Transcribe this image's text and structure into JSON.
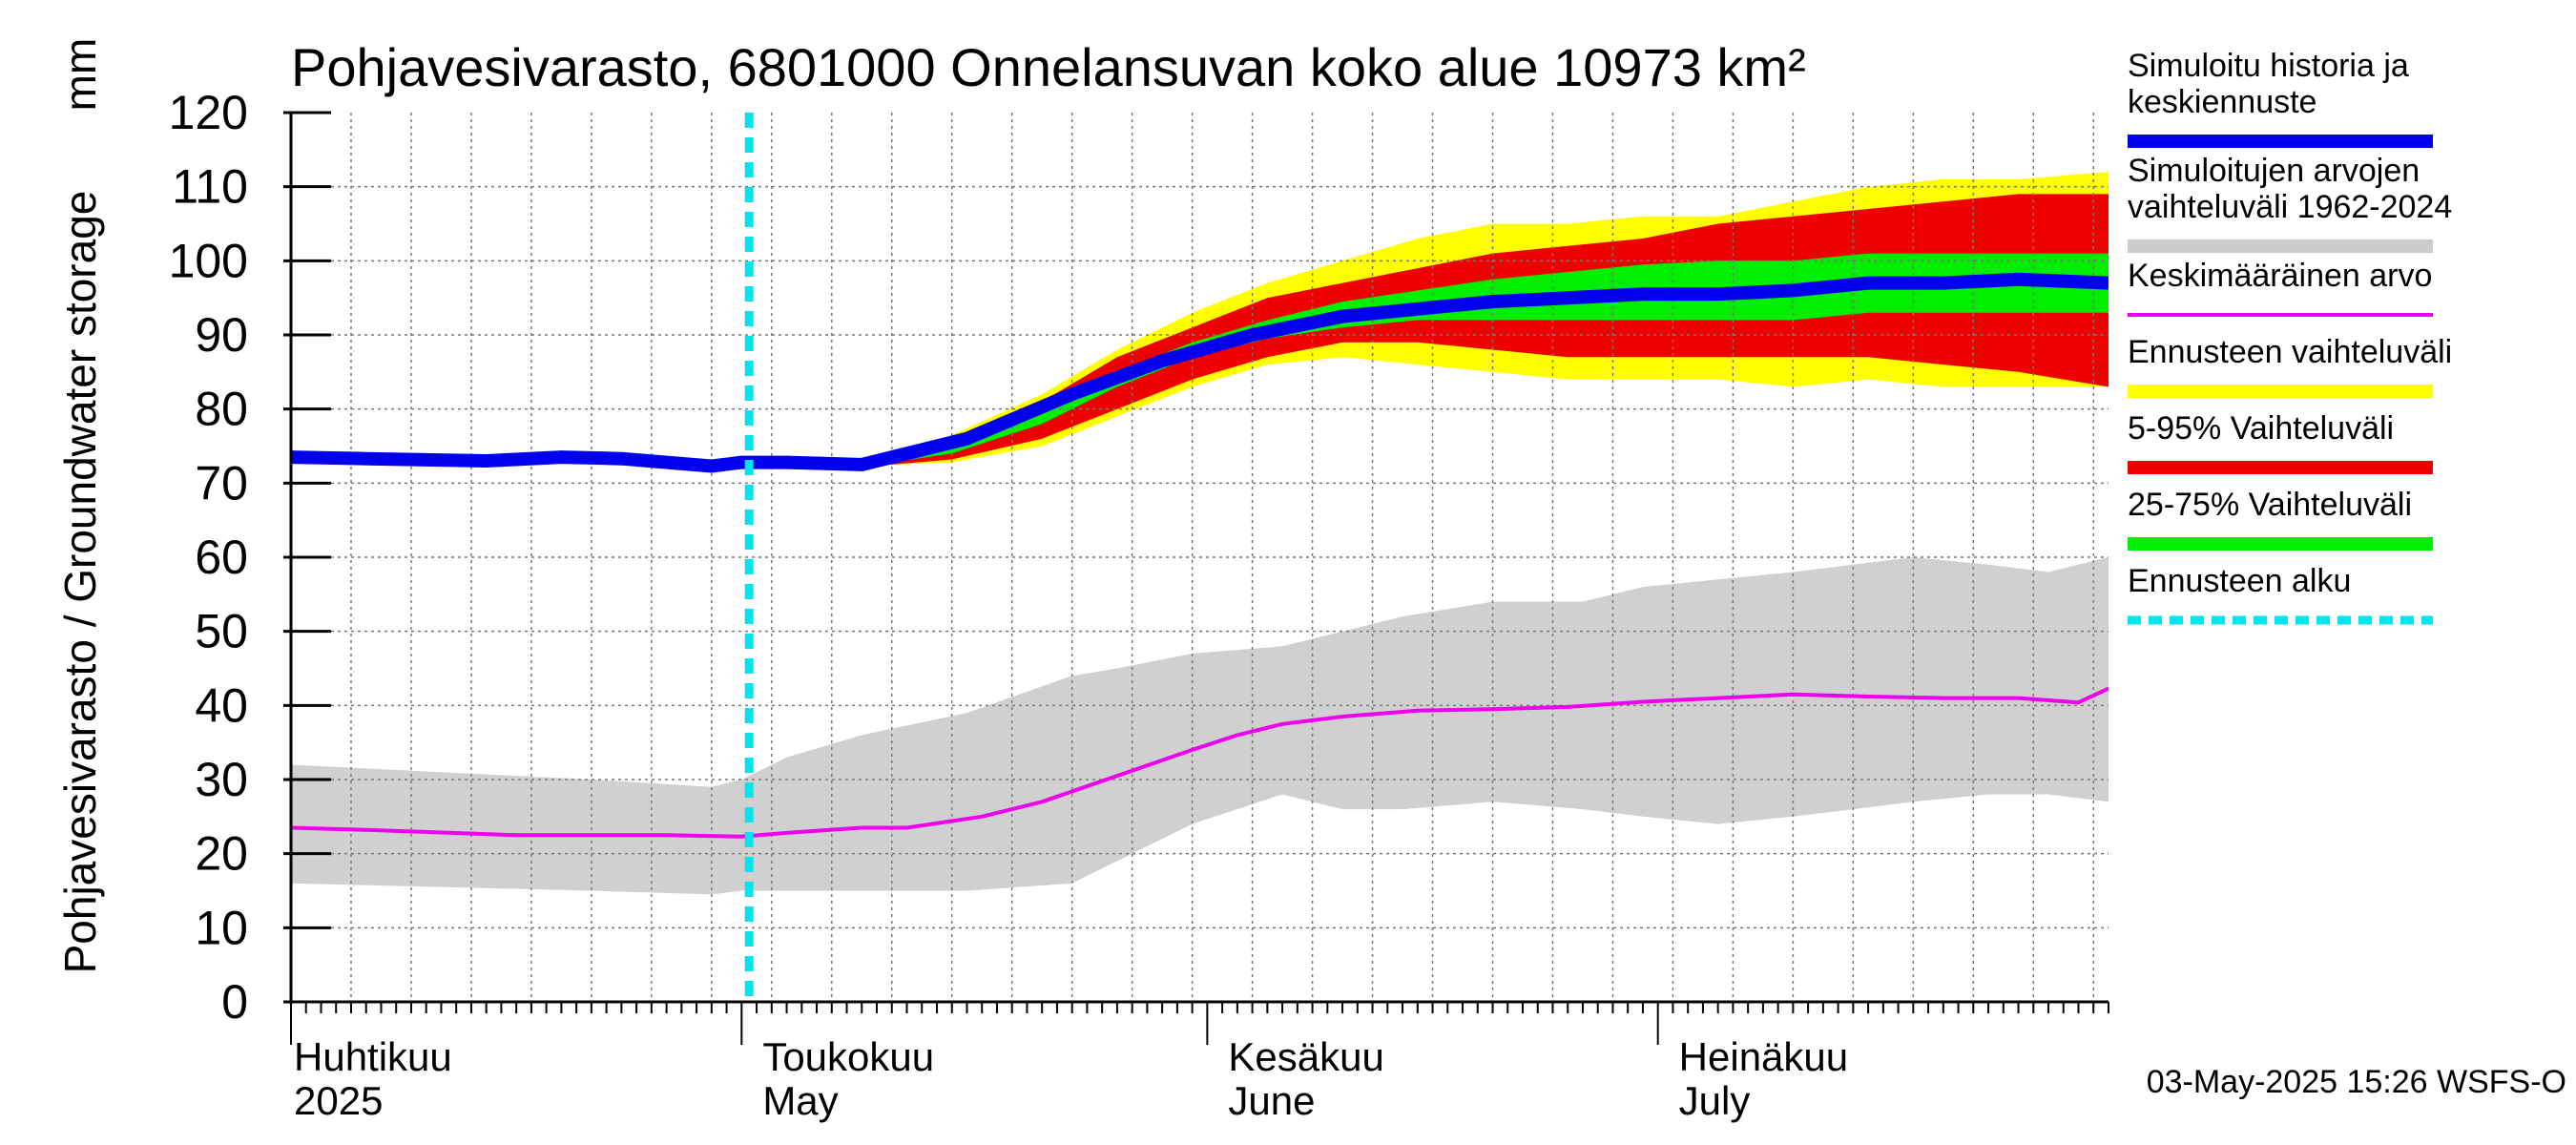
{
  "chart_data": {
    "type": "area",
    "title": "Pohjavesivarasto, 6801000 Onnelansuvan koko alue 10973 km²",
    "ylabel": "Pohjavesivarasto / Groundwater storage",
    "yunit": "mm",
    "ylim": [
      0,
      120
    ],
    "yticks": [
      0,
      10,
      20,
      30,
      40,
      50,
      60,
      70,
      80,
      90,
      100,
      110,
      120
    ],
    "xlim_days": [
      0,
      121
    ],
    "grid": true,
    "months": [
      {
        "fi": "Huhtikuu",
        "en": "2025",
        "day": 0
      },
      {
        "fi": "Toukokuu",
        "en": "May",
        "day": 30
      },
      {
        "fi": "Kesäkuu",
        "en": "June",
        "day": 61
      },
      {
        "fi": "Heinäkuu",
        "en": "July",
        "day": 91
      }
    ],
    "forecast_start_day": 30.5,
    "history_band": {
      "days": [
        0,
        10,
        20,
        28,
        30,
        33,
        38,
        45,
        52,
        55,
        60,
        66,
        70,
        74,
        80,
        86,
        90,
        95,
        100,
        104,
        108,
        113,
        117,
        121
      ],
      "lower": [
        16,
        15.5,
        15,
        14.5,
        15,
        15,
        15,
        15,
        16,
        19,
        24,
        28,
        26,
        26,
        27,
        26,
        25,
        24,
        25,
        26,
        27,
        28,
        28,
        27
      ],
      "upper": [
        32,
        31,
        30,
        29,
        30,
        33,
        36,
        39,
        44,
        45,
        47,
        48,
        50,
        52,
        54,
        54,
        56,
        57,
        58,
        59,
        60,
        59,
        58,
        60
      ]
    },
    "forecast_full_range": {
      "days": [
        37,
        40,
        44,
        50,
        55,
        60,
        65,
        70,
        75,
        80,
        85,
        90,
        95,
        100,
        105,
        110,
        115,
        121
      ],
      "lower": [
        72.5,
        72.5,
        72.8,
        75,
        79,
        83,
        86,
        87,
        86,
        85,
        84,
        84,
        84,
        83,
        84,
        83,
        83,
        83
      ],
      "upper": [
        72.5,
        73.5,
        76.5,
        82,
        88,
        93,
        97,
        100,
        103,
        105,
        105,
        106,
        106,
        108,
        110,
        111,
        111,
        112
      ]
    },
    "forecast_5_95": {
      "days": [
        37,
        40,
        44,
        50,
        55,
        60,
        65,
        70,
        75,
        80,
        85,
        90,
        95,
        100,
        105,
        110,
        115,
        121
      ],
      "lower": [
        72.5,
        72.5,
        73.2,
        76,
        80,
        84,
        87,
        89,
        89,
        88,
        87,
        87,
        87,
        87,
        87,
        86,
        85,
        83
      ],
      "upper": [
        72.5,
        73.5,
        76,
        81,
        87,
        91,
        95,
        97,
        99,
        101,
        102,
        103,
        105,
        106,
        107,
        108,
        109,
        109
      ]
    },
    "forecast_25_75": {
      "days": [
        37,
        40,
        44,
        50,
        55,
        60,
        65,
        70,
        75,
        80,
        85,
        90,
        95,
        100,
        105,
        110,
        115,
        121
      ],
      "lower": [
        72.5,
        72.8,
        74,
        78,
        83,
        87,
        89.5,
        91,
        92,
        92,
        92,
        92,
        92,
        92,
        93,
        93,
        93,
        93
      ],
      "upper": [
        72.5,
        73.2,
        75.5,
        80,
        85,
        89,
        92,
        94.5,
        96,
        97.5,
        98.5,
        99.5,
        100,
        100,
        101,
        101,
        101,
        101
      ]
    },
    "simulated_median": {
      "days": [
        0,
        5,
        13,
        18,
        22,
        28,
        30,
        33,
        38,
        45,
        52,
        58,
        64,
        70,
        75,
        80,
        85,
        90,
        95,
        100,
        105,
        110,
        115,
        121
      ],
      "values": [
        73.5,
        73.3,
        73,
        73.5,
        73.3,
        72.3,
        72.8,
        72.8,
        72.5,
        76,
        82,
        86.5,
        90,
        92.5,
        93.5,
        94.5,
        95,
        95.5,
        95.5,
        96,
        97,
        97,
        97.5,
        97
      ]
    },
    "mean": {
      "days": [
        0,
        5,
        15,
        25,
        30,
        33,
        38,
        41,
        46,
        50,
        55,
        60,
        63,
        66,
        70,
        75,
        80,
        85,
        90,
        95,
        100,
        105,
        110,
        115,
        119,
        121
      ],
      "values": [
        23.5,
        23.2,
        22.5,
        22.5,
        22.3,
        22.8,
        23.5,
        23.5,
        25,
        27,
        30.5,
        34,
        36,
        37.5,
        38.5,
        39.3,
        39.5,
        39.8,
        40.5,
        41,
        41.5,
        41.2,
        41,
        41,
        40.4,
        42.3
      ]
    },
    "legend": [
      {
        "label": "Simuloitu historia ja keskiennuste",
        "color": "#0000ee",
        "style": "line"
      },
      {
        "label": "Simuloitujen arvojen vaihteluväli 1962-2024",
        "color": "#cccccc",
        "style": "line"
      },
      {
        "label": "Keskimääräinen arvo",
        "color": "#ee00ee",
        "style": "thin"
      },
      {
        "label": "Ennusteen vaihteluväli",
        "color": "#ffff00",
        "style": "line"
      },
      {
        "label": "5-95% Vaihteluväli",
        "color": "#ee0000",
        "style": "line"
      },
      {
        "label": "25-75% Vaihteluväli",
        "color": "#00ee00",
        "style": "line"
      },
      {
        "label": "Ennusteen alku",
        "color": "#00e5ee",
        "style": "dashed"
      }
    ],
    "footer": "03-May-2025 15:26 WSFS-O",
    "colors": {
      "history_band": "#d0d0d0",
      "full_range": "#ffff00",
      "band_5_95": "#ee0000",
      "band_25_75": "#00ee00",
      "median": "#0000ee",
      "mean": "#ee00ee",
      "forecast_start": "#00e5ee",
      "grid": "#777777"
    }
  }
}
